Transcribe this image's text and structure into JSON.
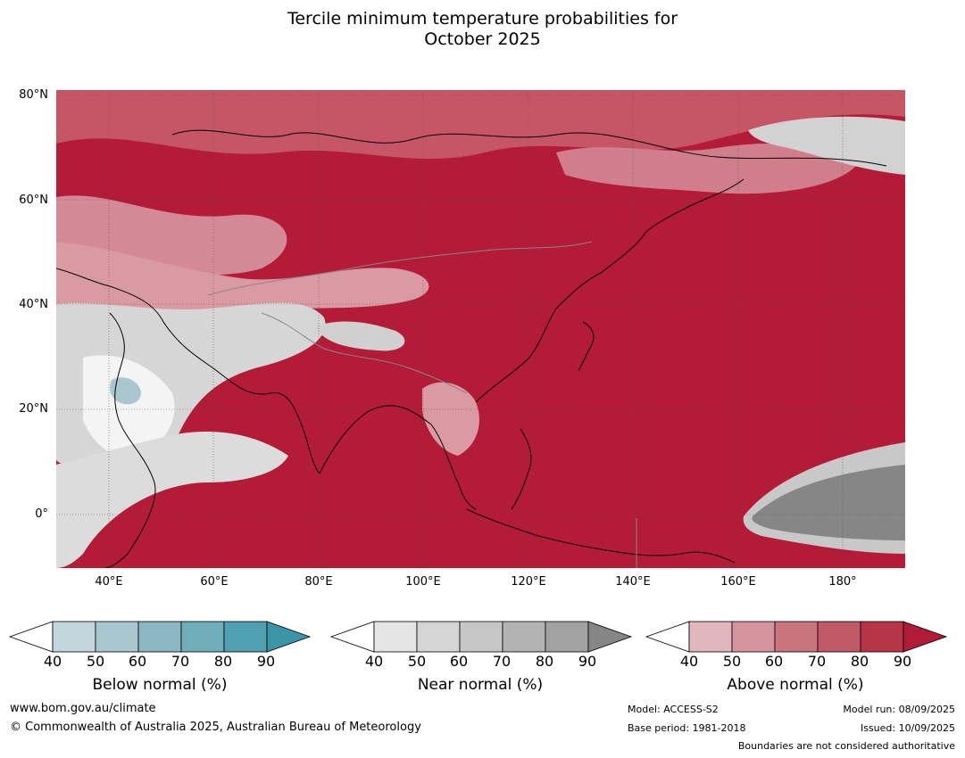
{
  "title": {
    "line1": "Tercile minimum temperature probabilities for",
    "line2": "October 2025"
  },
  "map": {
    "lat_labels": [
      "80°N",
      "60°N",
      "40°N",
      "20°N",
      "0°"
    ],
    "lon_labels": [
      "40°E",
      "60°E",
      "80°E",
      "100°E",
      "120°E",
      "140°E",
      "160°E",
      "180°"
    ]
  },
  "colorbars": [
    {
      "name": "below-normal",
      "title": "Below normal (%)",
      "ticks": [
        "40",
        "50",
        "60",
        "70",
        "80",
        "90"
      ],
      "colors": [
        "#c2d6dc",
        "#a9c7ce",
        "#8cb7c2",
        "#70adbb",
        "#4fa1b2",
        "#3a95a8"
      ]
    },
    {
      "name": "near-normal",
      "title": "Near normal (%)",
      "ticks": [
        "40",
        "50",
        "60",
        "70",
        "80",
        "90"
      ],
      "colors": [
        "#e5e5e5",
        "#d5d5d5",
        "#c6c6c6",
        "#b3b3b3",
        "#a2a2a2",
        "#868686"
      ]
    },
    {
      "name": "above-normal",
      "title": "Above normal (%)",
      "ticks": [
        "40",
        "50",
        "60",
        "70",
        "80",
        "90"
      ],
      "colors": [
        "#e1b6bd",
        "#d4949e",
        "#c9747f",
        "#bf5b67",
        "#b83447",
        "#b01b37"
      ]
    }
  ],
  "footer": {
    "website": "www.bom.gov.au/climate",
    "copyright": "© Commonwealth of Australia 2025, Australian Bureau of Meteorology",
    "model": "Model: ACCESS-S2",
    "base_period": "Base period: 1981-2018",
    "model_run": "Model run: 08/09/2025",
    "issued": "Issued: 10/09/2025",
    "boundaries": "Boundaries are not considered authoritative"
  }
}
